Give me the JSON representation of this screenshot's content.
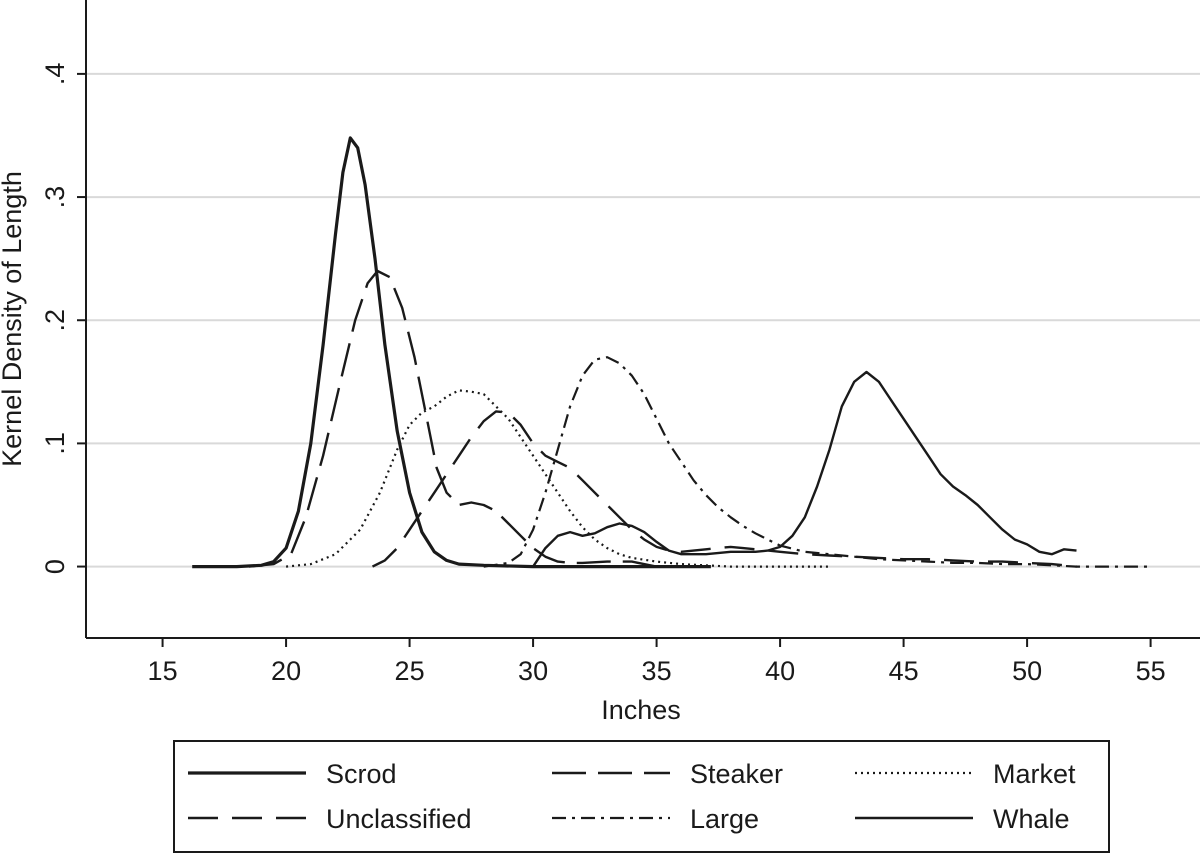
{
  "chart_data": {
    "type": "line",
    "ylabel": "Kernel Density of Length",
    "xlabel": "Inches",
    "xlim": [
      11.9,
      57.0
    ],
    "ylim": [
      -0.058,
      0.46
    ],
    "grid": true,
    "legend_position": "bottom",
    "x_ticks": [
      {
        "value": 15,
        "label": "15"
      },
      {
        "value": 20,
        "label": "20"
      },
      {
        "value": 25,
        "label": "25"
      },
      {
        "value": 30,
        "label": "30"
      },
      {
        "value": 35,
        "label": "35"
      },
      {
        "value": 40,
        "label": "40"
      },
      {
        "value": 45,
        "label": "45"
      },
      {
        "value": 50,
        "label": "50"
      },
      {
        "value": 55,
        "label": "55"
      }
    ],
    "y_ticks": [
      {
        "value": 0,
        "label": "0"
      },
      {
        "value": 0.1,
        "label": ".1"
      },
      {
        "value": 0.2,
        "label": ".2"
      },
      {
        "value": 0.3,
        "label": ".3"
      },
      {
        "value": 0.4,
        "label": ".4"
      }
    ],
    "series": [
      {
        "name": "Scrod",
        "style": {
          "width": 3.2,
          "dash": ""
        },
        "points": [
          [
            16.2,
            0
          ],
          [
            18.0,
            0
          ],
          [
            19.0,
            0.001
          ],
          [
            19.5,
            0.004
          ],
          [
            20.0,
            0.015
          ],
          [
            20.5,
            0.045
          ],
          [
            21.0,
            0.1
          ],
          [
            21.5,
            0.18
          ],
          [
            22.0,
            0.27
          ],
          [
            22.3,
            0.32
          ],
          [
            22.6,
            0.348
          ],
          [
            22.9,
            0.34
          ],
          [
            23.2,
            0.31
          ],
          [
            23.6,
            0.25
          ],
          [
            24.0,
            0.18
          ],
          [
            24.5,
            0.11
          ],
          [
            25.0,
            0.06
          ],
          [
            25.5,
            0.028
          ],
          [
            26.0,
            0.012
          ],
          [
            26.5,
            0.005
          ],
          [
            27.0,
            0.002
          ],
          [
            28.0,
            0.001
          ],
          [
            30.0,
            0
          ],
          [
            37.2,
            0
          ]
        ]
      },
      {
        "name": "Steaker",
        "style": {
          "width": 2.4,
          "dash": "34 12"
        },
        "points": [
          [
            18.5,
            0
          ],
          [
            19.5,
            0.002
          ],
          [
            20.2,
            0.01
          ],
          [
            20.8,
            0.04
          ],
          [
            21.5,
            0.09
          ],
          [
            22.2,
            0.15
          ],
          [
            22.8,
            0.2
          ],
          [
            23.3,
            0.23
          ],
          [
            23.7,
            0.24
          ],
          [
            24.2,
            0.235
          ],
          [
            24.7,
            0.21
          ],
          [
            25.2,
            0.17
          ],
          [
            25.7,
            0.12
          ],
          [
            26.1,
            0.08
          ],
          [
            26.5,
            0.06
          ],
          [
            27.0,
            0.05
          ],
          [
            27.5,
            0.052
          ],
          [
            28.0,
            0.05
          ],
          [
            28.5,
            0.045
          ],
          [
            29.0,
            0.035
          ],
          [
            29.5,
            0.025
          ],
          [
            30.0,
            0.015
          ],
          [
            30.5,
            0.008
          ],
          [
            31.0,
            0.004
          ],
          [
            31.5,
            0.003
          ],
          [
            32.0,
            0.003
          ],
          [
            33.0,
            0.004
          ],
          [
            34.0,
            0.004
          ],
          [
            35.0,
            0
          ]
        ]
      },
      {
        "name": "Market",
        "style": {
          "width": 2.2,
          "dash": "2 4"
        },
        "points": [
          [
            20.0,
            0
          ],
          [
            21.0,
            0.002
          ],
          [
            22.0,
            0.01
          ],
          [
            23.0,
            0.03
          ],
          [
            23.8,
            0.06
          ],
          [
            24.5,
            0.095
          ],
          [
            25.0,
            0.115
          ],
          [
            25.5,
            0.125
          ],
          [
            26.0,
            0.13
          ],
          [
            26.5,
            0.138
          ],
          [
            27.0,
            0.143
          ],
          [
            27.5,
            0.142
          ],
          [
            28.0,
            0.14
          ],
          [
            28.5,
            0.13
          ],
          [
            29.0,
            0.12
          ],
          [
            29.5,
            0.105
          ],
          [
            30.0,
            0.09
          ],
          [
            30.5,
            0.075
          ],
          [
            31.0,
            0.06
          ],
          [
            31.5,
            0.045
          ],
          [
            32.0,
            0.032
          ],
          [
            32.5,
            0.022
          ],
          [
            33.0,
            0.015
          ],
          [
            33.5,
            0.01
          ],
          [
            34.0,
            0.007
          ],
          [
            35.0,
            0.004
          ],
          [
            36.0,
            0.002
          ],
          [
            38.0,
            0
          ],
          [
            42.0,
            0
          ]
        ]
      },
      {
        "name": "Unclassified",
        "style": {
          "width": 2.4,
          "dash": "30 14"
        },
        "points": [
          [
            23.5,
            0
          ],
          [
            24.0,
            0.005
          ],
          [
            24.5,
            0.015
          ],
          [
            25.0,
            0.03
          ],
          [
            25.5,
            0.045
          ],
          [
            26.0,
            0.06
          ],
          [
            26.5,
            0.075
          ],
          [
            27.0,
            0.09
          ],
          [
            27.5,
            0.105
          ],
          [
            28.0,
            0.118
          ],
          [
            28.5,
            0.126
          ],
          [
            29.0,
            0.125
          ],
          [
            29.5,
            0.115
          ],
          [
            30.0,
            0.1
          ],
          [
            30.5,
            0.09
          ],
          [
            31.0,
            0.085
          ],
          [
            31.5,
            0.08
          ],
          [
            32.0,
            0.07
          ],
          [
            32.5,
            0.06
          ],
          [
            33.0,
            0.05
          ],
          [
            33.5,
            0.04
          ],
          [
            34.0,
            0.03
          ],
          [
            34.5,
            0.022
          ],
          [
            35.0,
            0.016
          ],
          [
            35.5,
            0.013
          ],
          [
            36.0,
            0.012
          ],
          [
            36.5,
            0.013
          ],
          [
            37.0,
            0.014
          ],
          [
            37.5,
            0.015
          ],
          [
            38.0,
            0.016
          ],
          [
            38.5,
            0.015
          ],
          [
            39.0,
            0.014
          ],
          [
            40.0,
            0.012
          ],
          [
            41.0,
            0.01
          ],
          [
            42.0,
            0.009
          ],
          [
            43.0,
            0.008
          ],
          [
            44.0,
            0.007
          ],
          [
            45.0,
            0.006
          ],
          [
            46.0,
            0.006
          ],
          [
            47.0,
            0.005
          ],
          [
            48.0,
            0.004
          ],
          [
            49.0,
            0.004
          ],
          [
            50.0,
            0.003
          ],
          [
            51.0,
            0.002
          ],
          [
            52.0,
            0
          ]
        ]
      },
      {
        "name": "Large",
        "style": {
          "width": 2.2,
          "dash": "14 6 3 6"
        },
        "points": [
          [
            28.0,
            0
          ],
          [
            29.0,
            0.003
          ],
          [
            29.5,
            0.01
          ],
          [
            30.0,
            0.03
          ],
          [
            30.5,
            0.06
          ],
          [
            31.0,
            0.095
          ],
          [
            31.5,
            0.13
          ],
          [
            32.0,
            0.155
          ],
          [
            32.5,
            0.168
          ],
          [
            33.0,
            0.17
          ],
          [
            33.5,
            0.165
          ],
          [
            34.0,
            0.155
          ],
          [
            34.5,
            0.14
          ],
          [
            35.0,
            0.12
          ],
          [
            35.5,
            0.1
          ],
          [
            36.0,
            0.085
          ],
          [
            36.5,
            0.07
          ],
          [
            37.0,
            0.058
          ],
          [
            37.5,
            0.048
          ],
          [
            38.0,
            0.04
          ],
          [
            38.5,
            0.033
          ],
          [
            39.0,
            0.027
          ],
          [
            39.5,
            0.022
          ],
          [
            40.0,
            0.017
          ],
          [
            41.0,
            0.012
          ],
          [
            42.0,
            0.01
          ],
          [
            43.0,
            0.008
          ],
          [
            44.0,
            0.006
          ],
          [
            45.0,
            0.005
          ],
          [
            46.0,
            0.004
          ],
          [
            47.0,
            0.003
          ],
          [
            48.0,
            0.003
          ],
          [
            49.0,
            0.002
          ],
          [
            50.0,
            0.002
          ],
          [
            51.0,
            0.001
          ],
          [
            52.0,
            0
          ],
          [
            55.0,
            0
          ]
        ]
      },
      {
        "name": "Whale",
        "style": {
          "width": 2.4,
          "dash": ""
        },
        "points": [
          [
            30.0,
            0
          ],
          [
            30.5,
            0.015
          ],
          [
            31.0,
            0.025
          ],
          [
            31.5,
            0.028
          ],
          [
            32.0,
            0.025
          ],
          [
            32.5,
            0.027
          ],
          [
            33.0,
            0.032
          ],
          [
            33.5,
            0.035
          ],
          [
            34.0,
            0.033
          ],
          [
            34.5,
            0.028
          ],
          [
            35.0,
            0.02
          ],
          [
            35.5,
            0.013
          ],
          [
            36.0,
            0.01
          ],
          [
            37.0,
            0.01
          ],
          [
            38.0,
            0.012
          ],
          [
            39.0,
            0.012
          ],
          [
            39.5,
            0.013
          ],
          [
            40.0,
            0.016
          ],
          [
            40.5,
            0.025
          ],
          [
            41.0,
            0.04
          ],
          [
            41.5,
            0.065
          ],
          [
            42.0,
            0.095
          ],
          [
            42.5,
            0.13
          ],
          [
            43.0,
            0.15
          ],
          [
            43.5,
            0.158
          ],
          [
            44.0,
            0.15
          ],
          [
            44.5,
            0.135
          ],
          [
            45.0,
            0.12
          ],
          [
            45.5,
            0.105
          ],
          [
            46.0,
            0.09
          ],
          [
            46.5,
            0.075
          ],
          [
            47.0,
            0.065
          ],
          [
            47.5,
            0.058
          ],
          [
            48.0,
            0.05
          ],
          [
            48.5,
            0.04
          ],
          [
            49.0,
            0.03
          ],
          [
            49.5,
            0.022
          ],
          [
            50.0,
            0.018
          ],
          [
            50.5,
            0.012
          ],
          [
            51.0,
            0.01
          ],
          [
            51.5,
            0.014
          ],
          [
            52.0,
            0.013
          ]
        ]
      }
    ],
    "legend_rows": [
      [
        "Scrod",
        "Steaker",
        "Market"
      ],
      [
        "Unclassified",
        "Large",
        "Whale"
      ]
    ]
  }
}
